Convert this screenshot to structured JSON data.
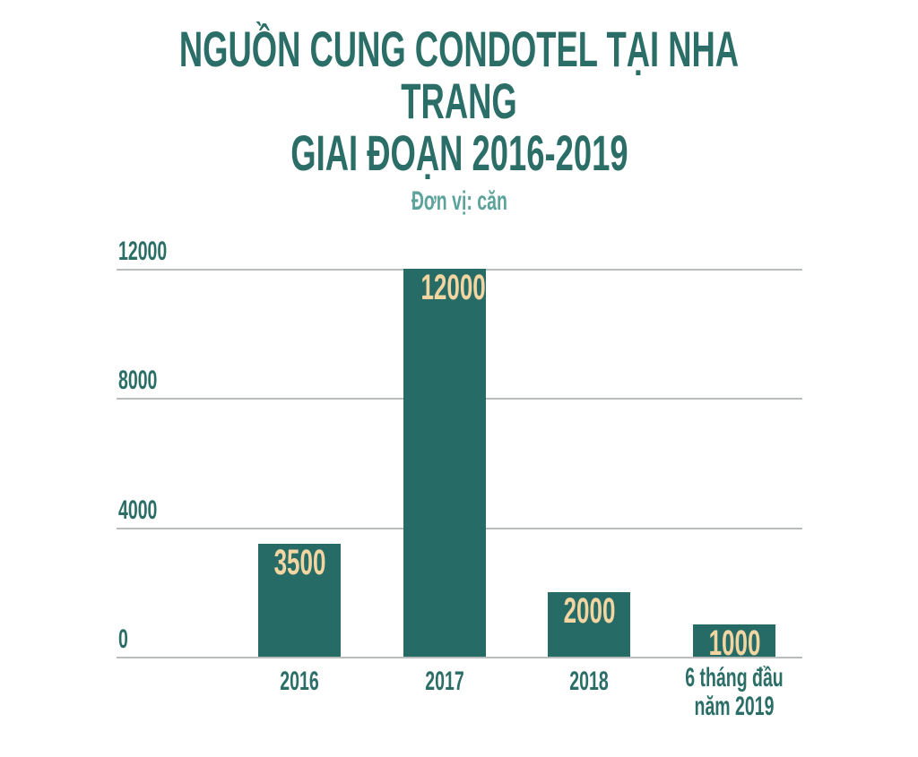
{
  "title": {
    "line1": "NGUỒN CUNG CONDOTEL TẠI NHA TRANG",
    "line2": "GIAI ĐOẠN 2016-2019"
  },
  "subtitle": "Đơn vị: căn",
  "chart_data": {
    "type": "bar",
    "title": "NGUỒN CUNG CONDOTEL TẠI NHA TRANG GIAI ĐOẠN 2016-2019",
    "subtitle": "Đơn vị: căn",
    "unit": "căn",
    "categories": [
      "2016",
      "2017",
      "2018",
      "6 tháng đầu năm 2019"
    ],
    "values": [
      3500,
      12000,
      2000,
      1000
    ],
    "xlabel": "",
    "ylabel": "",
    "ylim": [
      0,
      12000
    ],
    "y_ticks": [
      12000,
      8000,
      4000,
      0
    ],
    "grid": true,
    "legend": false,
    "colors": {
      "bar": "#266b66",
      "value_label": "#f2d5a1",
      "title": "#2b6e67",
      "subtitle": "#5ba39b",
      "axis_label": "#2b6e67",
      "gridline": "#b9bdbb",
      "background": "#ffffff"
    }
  }
}
